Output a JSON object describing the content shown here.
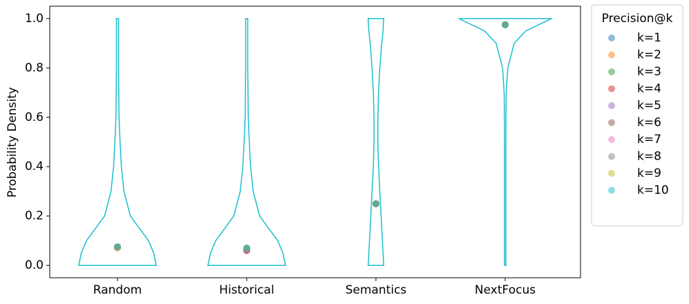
{
  "chart_data": {
    "type": "violin",
    "y_label": "Probability Density",
    "categories": [
      "Random",
      "Historical",
      "Semantics",
      "NextFocus"
    ],
    "ylim": [
      -0.05,
      1.05
    ],
    "yticks": [
      {
        "value": 0,
        "label": "0.0"
      },
      {
        "value": 0.2,
        "label": "0.2"
      },
      {
        "value": 0.4,
        "label": "0.4"
      },
      {
        "value": 0.6,
        "label": "0.6"
      },
      {
        "value": 0.8,
        "label": "0.8"
      },
      {
        "value": 1,
        "label": "1.0"
      }
    ],
    "density_y": [
      0,
      0.05,
      0.1,
      0.15,
      0.2,
      0.3,
      0.4,
      0.5,
      0.6,
      0.7,
      0.8,
      0.9,
      0.95,
      1.0
    ],
    "density": [
      [
        0.3,
        0.28,
        0.24,
        0.17,
        0.1,
        0.05,
        0.03,
        0.02,
        0.012,
        0.01,
        0.008,
        0.008,
        0.008,
        0.008
      ],
      [
        0.3,
        0.28,
        0.24,
        0.17,
        0.1,
        0.05,
        0.03,
        0.02,
        0.012,
        0.01,
        0.008,
        0.008,
        0.008,
        0.008
      ],
      [
        0.06,
        0.055,
        0.05,
        0.045,
        0.04,
        0.03,
        0.02,
        0.015,
        0.015,
        0.02,
        0.03,
        0.045,
        0.055,
        0.06
      ],
      [
        0.005,
        0.005,
        0.005,
        0.005,
        0.005,
        0.005,
        0.005,
        0.005,
        0.006,
        0.008,
        0.02,
        0.07,
        0.16,
        0.36
      ]
    ],
    "legend_title": "Precision@k",
    "legend": "outside-right",
    "series": [
      {
        "name": "k=1",
        "color": "#1f77b4",
        "values": [
          0.075,
          0.07,
          0.25,
          0.975
        ]
      },
      {
        "name": "k=2",
        "color": "#ff7f0e",
        "values": [
          0.07,
          0.065,
          0.25,
          0.975
        ]
      },
      {
        "name": "k=3",
        "color": "#2ca02c",
        "values": [
          0.075,
          0.07,
          0.25,
          0.975
        ]
      },
      {
        "name": "k=4",
        "color": "#d62728",
        "values": [
          0.075,
          0.06,
          0.25,
          0.975
        ]
      },
      {
        "name": "k=5",
        "color": "#9467bd",
        "values": [
          0.075,
          0.065,
          0.25,
          0.975
        ]
      },
      {
        "name": "k=6",
        "color": "#8c564b",
        "values": [
          0.075,
          0.06,
          0.25,
          0.975
        ]
      },
      {
        "name": "k=7",
        "color": "#e377c2",
        "values": [
          0.075,
          0.065,
          0.25,
          0.975
        ]
      },
      {
        "name": "k=8",
        "color": "#7f7f7f",
        "values": [
          0.075,
          0.07,
          0.25,
          0.975
        ]
      },
      {
        "name": "k=9",
        "color": "#bcbd22",
        "values": [
          0.075,
          0.07,
          0.25,
          0.975
        ]
      },
      {
        "name": "k=10",
        "color": "#17becf",
        "values": [
          0.075,
          0.07,
          0.25,
          0.975
        ]
      }
    ]
  }
}
